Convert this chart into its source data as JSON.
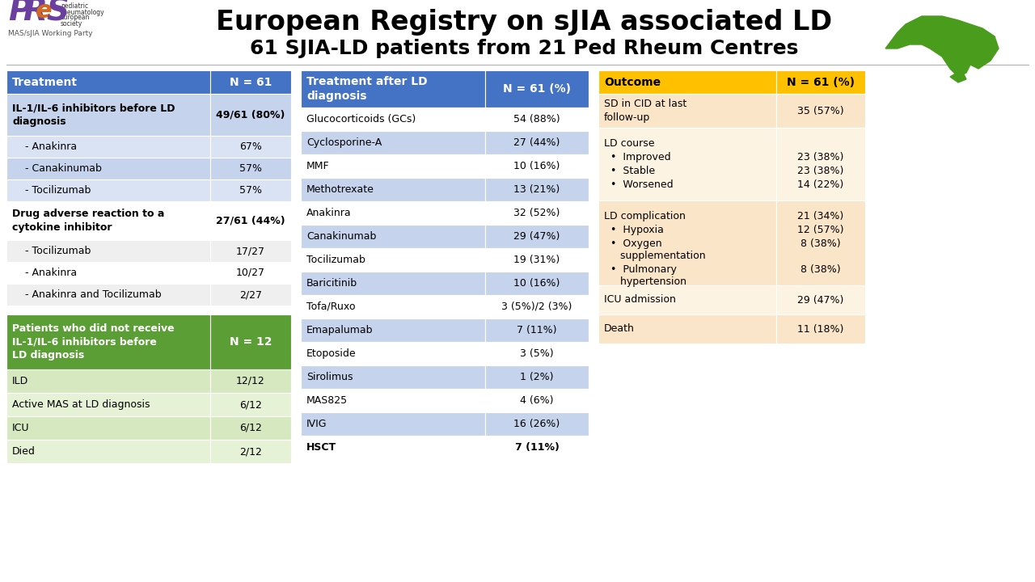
{
  "title1": "European Registry on sJIA associated LD",
  "title2": "61 SJIA-LD patients from 21 Ped Rheum Centres",
  "t1_header": [
    "Treatment",
    "N = 61"
  ],
  "t1_header_color": "#4472C4",
  "t1_rows": [
    {
      "label": "IL-1/IL-6 inhibitors before LD\ndiagnosis",
      "val": "49/61 (80%)",
      "fw": "bold",
      "bg0": "#C5D3ED",
      "bg1": "#C5D3ED"
    },
    {
      "label": "    - Anakinra",
      "val": "67%",
      "fw": "normal",
      "bg0": "#C5D3ED",
      "bg1": "#C5D3ED"
    },
    {
      "label": "    - Canakinumab",
      "val": "57%",
      "fw": "normal",
      "bg0": "#C5D3ED",
      "bg1": "#C5D3ED"
    },
    {
      "label": "    - Tocilizumab",
      "val": "57%",
      "fw": "normal",
      "bg0": "#C5D3ED",
      "bg1": "#C5D3ED"
    },
    {
      "label": "Drug adverse reaction to a\ncytokine inhibitor",
      "val": "27/61 (44%)",
      "fw": "bold",
      "bg0": "#FFFFFF",
      "bg1": "#FFFFFF"
    },
    {
      "label": "    - Tocilizumab",
      "val": "17/27",
      "fw": "normal",
      "bg0": "#FFFFFF",
      "bg1": "#FFFFFF"
    },
    {
      "label": "    - Anakinra",
      "val": "10/27",
      "fw": "normal",
      "bg0": "#FFFFFF",
      "bg1": "#FFFFFF"
    },
    {
      "label": "    - Anakinra and Tocilizumab",
      "val": "2/27",
      "fw": "normal",
      "bg0": "#FFFFFF",
      "bg1": "#FFFFFF"
    }
  ],
  "t1_row_heights": [
    52,
    27,
    27,
    27,
    48,
    27,
    27,
    27
  ],
  "t1g_header": [
    "Patients who did not receive\nIL-1/IL-6 inhibitors before\nLD diagnosis",
    "N = 12"
  ],
  "t1g_header_color": "#5B9E35",
  "t1g_rows": [
    {
      "label": "ILD",
      "val": "12/12",
      "bg": "#D6E8C0"
    },
    {
      "label": "Active MAS at LD diagnosis",
      "val": "6/12",
      "bg": "#E6F2D6"
    },
    {
      "label": "ICU",
      "val": "6/12",
      "bg": "#D6E8C0"
    },
    {
      "label": "Died",
      "val": "2/12",
      "bg": "#E6F2D6"
    }
  ],
  "t2_header": [
    "Treatment after LD\ndiagnosis",
    "N = 61 (%)"
  ],
  "t2_header_color": "#4472C4",
  "t2_rows": [
    {
      "label": "Glucocorticoids (GCs)",
      "val": "54 (88%)",
      "bg": "#FFFFFF",
      "fw": "normal"
    },
    {
      "label": "Cyclosporine-A",
      "val": "27 (44%)",
      "bg": "#C5D3ED",
      "fw": "normal"
    },
    {
      "label": "MMF",
      "val": "10 (16%)",
      "bg": "#FFFFFF",
      "fw": "normal"
    },
    {
      "label": "Methotrexate",
      "val": "13 (21%)",
      "bg": "#C5D3ED",
      "fw": "normal"
    },
    {
      "label": "Anakinra",
      "val": "32 (52%)",
      "bg": "#FFFFFF",
      "fw": "normal"
    },
    {
      "label": "Canakinumab",
      "val": "29 (47%)",
      "bg": "#C5D3ED",
      "fw": "normal"
    },
    {
      "label": "Tocilizumab",
      "val": "19 (31%)",
      "bg": "#FFFFFF",
      "fw": "normal"
    },
    {
      "label": "Baricitinib",
      "val": "10 (16%)",
      "bg": "#C5D3ED",
      "fw": "normal"
    },
    {
      "label": "Tofa/Ruxo",
      "val": "3 (5%)/2 (3%)",
      "bg": "#FFFFFF",
      "fw": "normal"
    },
    {
      "label": "Emapalumab",
      "val": "7 (11%)",
      "bg": "#C5D3ED",
      "fw": "normal"
    },
    {
      "label": "Etoposide",
      "val": "3 (5%)",
      "bg": "#FFFFFF",
      "fw": "normal"
    },
    {
      "label": "Sirolimus",
      "val": "1 (2%)",
      "bg": "#C5D3ED",
      "fw": "normal"
    },
    {
      "label": "MAS825",
      "val": "4 (6%)",
      "bg": "#FFFFFF",
      "fw": "normal"
    },
    {
      "label": "IVIG",
      "val": "16 (26%)",
      "bg": "#C5D3ED",
      "fw": "normal"
    },
    {
      "label": "HSCT",
      "val": "7 (11%)",
      "bg": "#FFFFFF",
      "fw": "bold"
    }
  ],
  "t3_header": [
    "Outcome",
    "N = 61 (%)"
  ],
  "t3_header_color": "#FFC000",
  "t3_rows": [
    {
      "label": "SD in CID at last\nfollow-up",
      "val": "35 (57%)",
      "bg": "#FAE5C8",
      "fw": "normal"
    },
    {
      "label": "LD course\n  •  Improved\n  •  Stable\n  •  Worsened",
      "val": "\n23 (38%)\n23 (38%)\n14 (22%)",
      "bg": "#FDF3E3",
      "fw": "normal"
    },
    {
      "label": "LD complication\n  •  Hypoxia\n  •  Oxygen\n     supplementation\n  •  Pulmonary\n     hypertension",
      "val": "21 (34%)\n12 (57%)\n8 (38%)\n\n8 (38%)",
      "bg": "#FAE5C8",
      "fw": "normal"
    },
    {
      "label": "ICU admission",
      "val": "29 (47%)",
      "bg": "#FDF3E3",
      "fw": "normal"
    },
    {
      "label": "Death",
      "val": "11 (18%)",
      "bg": "#FAE5C8",
      "fw": "normal"
    }
  ],
  "t3_row_heights": [
    42,
    88,
    100,
    36,
    36
  ],
  "blue_header_color": "#4472C4",
  "white": "#FFFFFF",
  "light_blue1": "#C5D3ED",
  "light_blue2": "#DAE3F3"
}
